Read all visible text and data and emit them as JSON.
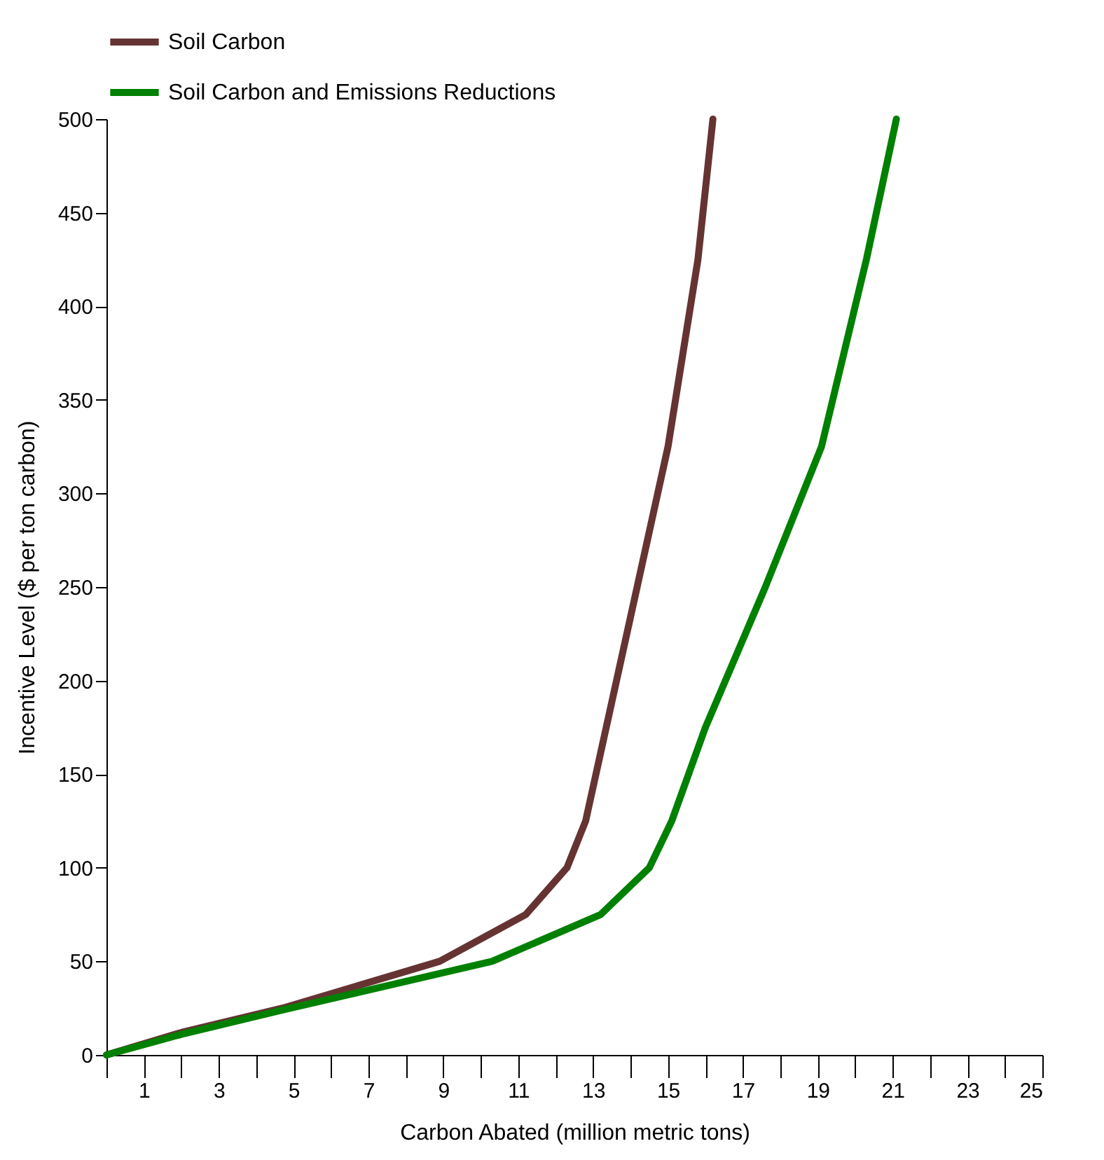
{
  "chart_data": {
    "type": "line",
    "xlabel": "Carbon Abated (million metric tons)",
    "ylabel": "Incentive Level ($ per ton carbon)",
    "xlim": [
      0,
      25
    ],
    "xticks": [
      {
        "value": 0,
        "label": null
      },
      1,
      {
        "value": 2,
        "label": null
      },
      3,
      {
        "value": 4,
        "label": null
      },
      5,
      {
        "value": 6,
        "label": null
      },
      7,
      {
        "value": 8,
        "label": null
      },
      9,
      {
        "value": 10,
        "label": null
      },
      11,
      {
        "value": 12,
        "label": null
      },
      13,
      {
        "value": 14,
        "label": null
      },
      15,
      {
        "value": 16,
        "label": null
      },
      17,
      {
        "value": 18,
        "label": null
      },
      19,
      {
        "value": 20,
        "label": null
      },
      21,
      {
        "value": 22,
        "label": null
      },
      23,
      {
        "value": 24,
        "label": null
      },
      25
    ],
    "ylim": [
      0,
      500
    ],
    "yticks": [
      0,
      50,
      100,
      150,
      200,
      250,
      300,
      350,
      400,
      450,
      500
    ],
    "grid": false,
    "legend": "top",
    "marker": "none",
    "line_style": "solid",
    "series": [
      {
        "name": "Soil Carbon",
        "color": "#663333",
        "x": [
          0,
          2,
          4.7,
          8.9,
          11.2,
          12.3,
          12.8,
          15.0,
          15.8,
          16.2
        ],
        "values": [
          0,
          12,
          25,
          50,
          75,
          100,
          125,
          325,
          425,
          500
        ]
      },
      {
        "name": "Soil Carbon and Emissions Reductions",
        "color": "#008000",
        "x": [
          0,
          2,
          4.7,
          10.3,
          13.2,
          14.5,
          15.1,
          16.0,
          17.6,
          19.1,
          20.3,
          21.1
        ],
        "values": [
          0,
          11,
          24,
          50,
          75,
          100,
          125,
          175,
          250,
          325,
          425,
          500
        ]
      }
    ]
  }
}
